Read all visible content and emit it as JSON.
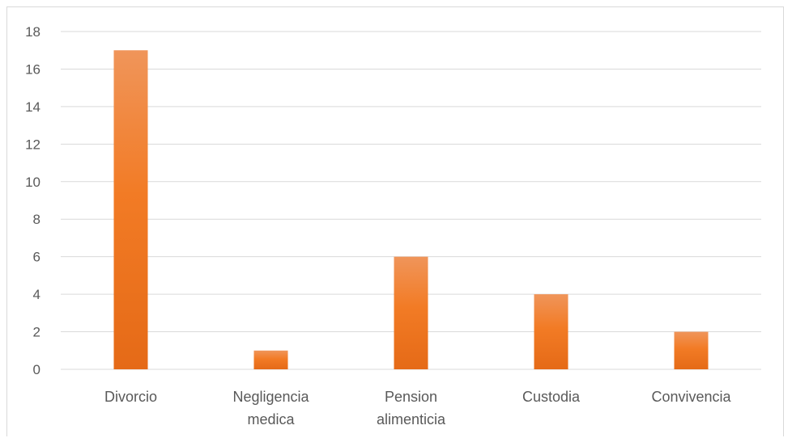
{
  "chart_data": {
    "type": "bar",
    "categories": [
      [
        "Divorcio"
      ],
      [
        "Negligencia",
        "medica"
      ],
      [
        "Pension",
        "alimenticia"
      ],
      [
        "Custodia"
      ],
      [
        "Convivencia"
      ]
    ],
    "values": [
      17,
      1,
      6,
      4,
      2
    ],
    "ylim": [
      0,
      18
    ],
    "yticks": [
      0,
      2,
      4,
      6,
      8,
      10,
      12,
      14,
      16,
      18
    ],
    "title": "",
    "xlabel": "",
    "ylabel": "",
    "grid": true,
    "legend": "none",
    "colors": {
      "bar_top": "#f0955a",
      "bar_mid": "#f27b25",
      "bar_bottom": "#e56a17",
      "grid": "#d9d9d9",
      "text": "#595959"
    }
  }
}
